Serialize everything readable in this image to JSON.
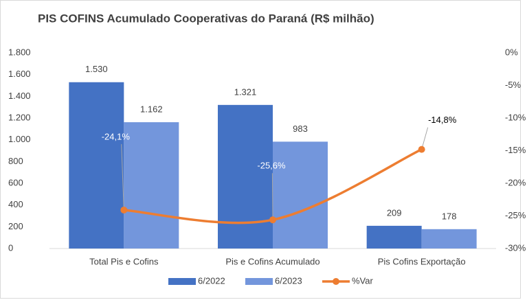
{
  "chart_data": {
    "type": "bar-line",
    "title": "PIS COFINS Acumulado Cooperativas do Paraná (R$ milhão)",
    "categories": [
      "Total Pis e Cofins",
      "Pis e Cofins Acumulado",
      "Pis Cofins Exportação"
    ],
    "series": [
      {
        "name": "6/2022",
        "color": "#4472c4",
        "type": "bar",
        "values": [
          1530,
          1321,
          209
        ],
        "value_labels": [
          "1.530",
          "1.321",
          "209"
        ]
      },
      {
        "name": "6/2023",
        "color": "#7396dc",
        "type": "bar",
        "values": [
          1162,
          983,
          178
        ],
        "value_labels": [
          "1.162",
          "983",
          "178"
        ]
      },
      {
        "name": "%Var",
        "color": "#ed7d31",
        "type": "line",
        "axis": "y2",
        "values": [
          -24.1,
          -25.6,
          -14.8
        ],
        "value_labels": [
          "-24,1%",
          "-25,6%",
          "-14,8%"
        ]
      }
    ],
    "ylim": [
      0,
      1800
    ],
    "yticks": [
      0,
      200,
      400,
      600,
      800,
      {
        "value": 1000,
        "label": "1.000"
      },
      {
        "value": 1200,
        "label": "1.200"
      },
      {
        "value": 1400,
        "label": "1.400"
      },
      {
        "value": 1600,
        "label": "1.600"
      },
      {
        "value": 1800,
        "label": "1.800"
      }
    ],
    "y2lim": [
      -30,
      0
    ],
    "y2ticks": [
      {
        "value": 0,
        "label": "0%"
      },
      {
        "value": -5,
        "label": "-5%"
      },
      {
        "value": -10,
        "label": "-10%"
      },
      {
        "value": -15,
        "label": "-15%"
      },
      {
        "value": -20,
        "label": "-20%"
      },
      {
        "value": -25,
        "label": "-25%"
      },
      {
        "value": -30,
        "label": "-30%"
      }
    ],
    "legend": "bottom"
  }
}
